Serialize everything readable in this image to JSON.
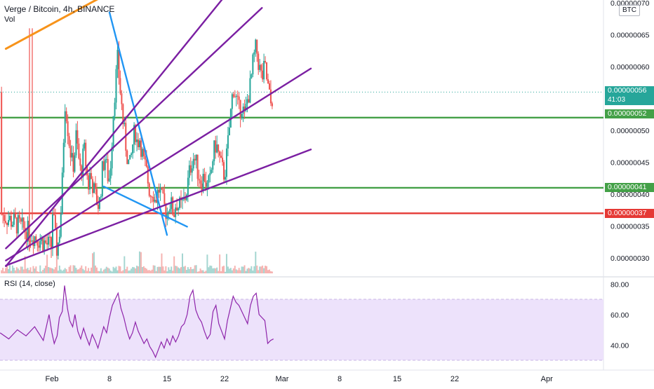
{
  "header": {
    "title": "Verge / Bitcoin, 4h, BINANCE",
    "volume_label": "Vol",
    "currency_badge": "BTC"
  },
  "rsi_panel": {
    "title": "RSI (14, close)"
  },
  "price_tags": {
    "last_price": "0.00000056",
    "countdown": "41:03",
    "green_upper": "0.00000052",
    "green_lower": "0.00000041",
    "red": "0.00000037"
  },
  "colors": {
    "up": "#26a69a",
    "down": "#ef5350",
    "green_level": "#43a047",
    "red_level": "#e53935",
    "orange_trend": "#f7931a",
    "purple_trend": "#7b1fa2",
    "blue_trend": "#2196f3",
    "rsi_line": "#8e24aa",
    "rsi_band": "#ede2fb"
  },
  "chart_data": [
    {
      "type": "candlestick",
      "title": "Verge / Bitcoin, 4h, BINANCE",
      "x_ticks": [
        "Feb",
        "8",
        "15",
        "22",
        "Mar",
        "8",
        "15",
        "22",
        "Apr"
      ],
      "y_ticks": [
        "0.00000030",
        "0.00000035",
        "0.00000040",
        "0.00000045",
        "0.00000050",
        "0.00000060",
        "0.00000065",
        "0.00000070"
      ],
      "ylim": [
        2.8e-07,
        7e-07
      ],
      "close_path": [
        [
          0,
          3.8e-07
        ],
        [
          0.03,
          3.6e-07
        ],
        [
          0.06,
          3.3e-07
        ],
        [
          0.09,
          3.1e-07
        ],
        [
          0.13,
          3.4e-07
        ],
        [
          0.17,
          3.9e-07
        ],
        [
          0.2,
          4.8e-07
        ],
        [
          0.23,
          5.5e-07
        ],
        [
          0.26,
          5.2e-07
        ],
        [
          0.29,
          4.9e-07
        ],
        [
          0.32,
          4.7e-07
        ],
        [
          0.36,
          4.4e-07
        ],
        [
          0.39,
          4.6e-07
        ],
        [
          0.42,
          4.9e-07
        ],
        [
          0.46,
          4.6e-07
        ],
        [
          0.5,
          4.3e-07
        ],
        [
          0.53,
          4.5e-07
        ],
        [
          0.56,
          4.7e-07
        ],
        [
          0.6,
          4.4e-07
        ],
        [
          0.63,
          4.1e-07
        ],
        [
          0.66,
          4.3e-07
        ],
        [
          0.7,
          4.2e-07
        ],
        [
          0.74,
          4e-07
        ],
        [
          0.78,
          3.9e-07
        ],
        [
          0.82,
          3.8e-07
        ],
        [
          0.85,
          4.1e-07
        ],
        [
          0.88,
          4.4e-07
        ],
        [
          0.92,
          4.6e-07
        ],
        [
          0.95,
          4.4e-07
        ],
        [
          0.99,
          4.2e-07
        ],
        [
          1.03,
          4.6e-07
        ],
        [
          1.06,
          5.2e-07
        ],
        [
          1.1,
          5.7e-07
        ],
        [
          1.14,
          6.1e-07
        ],
        [
          1.17,
          5.8e-07
        ],
        [
          1.21,
          5.4e-07
        ],
        [
          1.24,
          5.1e-07
        ],
        [
          1.28,
          4.8e-07
        ],
        [
          1.31,
          4.6e-07
        ],
        [
          1.35,
          4.4e-07
        ],
        [
          1.38,
          4.6e-07
        ],
        [
          1.42,
          4.9e-07
        ],
        [
          1.45,
          5e-07
        ],
        [
          1.48,
          4.8e-07
        ],
        [
          1.52,
          4.9e-07
        ],
        [
          1.56,
          4.7e-07
        ],
        [
          1.59,
          4.5e-07
        ],
        [
          1.63,
          4.4e-07
        ],
        [
          1.67,
          4.2e-07
        ],
        [
          1.71,
          4e-07
        ],
        [
          1.75,
          4.1e-07
        ],
        [
          1.79,
          3.9e-07
        ],
        [
          1.83,
          4e-07
        ],
        [
          1.87,
          4.1e-07
        ],
        [
          1.91,
          3.9e-07
        ],
        [
          1.95,
          3.8e-07
        ],
        [
          2.0,
          3.7e-07
        ],
        [
          2.04,
          3.9e-07
        ],
        [
          2.08,
          3.8e-07
        ],
        [
          2.12,
          3.7e-07
        ],
        [
          2.16,
          3.9e-07
        ],
        [
          2.2,
          3.8e-07
        ],
        [
          2.25,
          3.8e-07
        ],
        [
          2.3,
          3.9e-07
        ],
        [
          2.35,
          4.1e-07
        ],
        [
          2.4,
          4.4e-07
        ],
        [
          2.45,
          4.6e-07
        ],
        [
          2.5,
          4.5e-07
        ],
        [
          2.55,
          4.3e-07
        ],
        [
          2.6,
          4.2e-07
        ],
        [
          2.65,
          4.3e-07
        ],
        [
          2.7,
          4.1e-07
        ],
        [
          2.75,
          4.2e-07
        ],
        [
          2.8,
          4.6e-07
        ],
        [
          2.85,
          4.8e-07
        ],
        [
          2.9,
          4.6e-07
        ],
        [
          2.95,
          4.4e-07
        ],
        [
          3.0,
          4.3e-07
        ],
        [
          3.05,
          4.7e-07
        ],
        [
          3.1,
          5.2e-07
        ],
        [
          3.15,
          5.7e-07
        ],
        [
          3.2,
          5.5e-07
        ],
        [
          3.25,
          5.3e-07
        ],
        [
          3.3,
          5.4e-07
        ],
        [
          3.35,
          5.2e-07
        ],
        [
          3.4,
          5.5e-07
        ],
        [
          3.45,
          5.7e-07
        ],
        [
          3.5,
          6.1e-07
        ],
        [
          3.55,
          6.3e-07
        ],
        [
          3.6,
          6e-07
        ],
        [
          3.65,
          5.8e-07
        ],
        [
          3.7,
          6e-07
        ],
        [
          3.75,
          5.7e-07
        ],
        [
          3.8,
          5.4e-07
        ],
        [
          3.85,
          5.6e-07
        ]
      ],
      "x_unit_note": "x in weeks from Feb 1",
      "horizontal_levels": [
        {
          "price": 5.2e-07,
          "color": "green"
        },
        {
          "price": 4.1e-07,
          "color": "green"
        },
        {
          "price": 3.7e-07,
          "color": "red"
        }
      ],
      "trendlines": [
        {
          "color": "orange",
          "from": [
            -0.8,
            6.28e-07
          ],
          "to": [
            1.6,
            7.45e-07
          ]
        },
        {
          "color": "blue",
          "from": [
            1.0,
            6.85e-07
          ],
          "to": [
            2.0,
            3.36e-07
          ]
        },
        {
          "color": "blue",
          "from": [
            0.9,
            4.12e-07
          ],
          "to": [
            2.35,
            3.49e-07
          ]
        },
        {
          "color": "purple",
          "from": [
            -0.8,
            2.87e-07
          ],
          "to": [
            3.0,
            7.1e-07
          ]
        },
        {
          "color": "purple",
          "from": [
            -0.8,
            3.15e-07
          ],
          "to": [
            3.65,
            6.92e-07
          ]
        },
        {
          "color": "purple",
          "from": [
            -0.8,
            2.96e-07
          ],
          "to": [
            4.5,
            5.97e-07
          ]
        },
        {
          "color": "purple",
          "from": [
            -0.8,
            2.88e-07
          ],
          "to": [
            4.5,
            4.7e-07
          ]
        }
      ]
    },
    {
      "type": "line",
      "title": "RSI (14, close)",
      "y_ticks": [
        "40.00",
        "60.00",
        "80.00"
      ],
      "ylim": [
        25,
        85
      ],
      "band": [
        30,
        70
      ],
      "values": [
        [
          0,
          48
        ],
        [
          0.04,
          41
        ],
        [
          0.09,
          46
        ],
        [
          0.13,
          58
        ],
        [
          0.18,
          62
        ],
        [
          0.22,
          79
        ],
        [
          0.27,
          64
        ],
        [
          0.31,
          56
        ],
        [
          0.36,
          52
        ],
        [
          0.4,
          60
        ],
        [
          0.45,
          49
        ],
        [
          0.5,
          44
        ],
        [
          0.55,
          51
        ],
        [
          0.6,
          45
        ],
        [
          0.65,
          40
        ],
        [
          0.7,
          47
        ],
        [
          0.75,
          43
        ],
        [
          0.8,
          38
        ],
        [
          0.85,
          45
        ],
        [
          0.9,
          52
        ],
        [
          0.95,
          48
        ],
        [
          1.0,
          58
        ],
        [
          1.05,
          66
        ],
        [
          1.1,
          70
        ],
        [
          1.15,
          74
        ],
        [
          1.2,
          64
        ],
        [
          1.25,
          58
        ],
        [
          1.3,
          50
        ],
        [
          1.35,
          44
        ],
        [
          1.4,
          48
        ],
        [
          1.45,
          55
        ],
        [
          1.5,
          49
        ],
        [
          1.55,
          45
        ],
        [
          1.6,
          41
        ],
        [
          1.65,
          44
        ],
        [
          1.7,
          39
        ],
        [
          1.75,
          36
        ],
        [
          1.8,
          32
        ],
        [
          1.85,
          37
        ],
        [
          1.9,
          42
        ],
        [
          1.95,
          38
        ],
        [
          2.0,
          44
        ],
        [
          2.05,
          40
        ],
        [
          2.1,
          46
        ],
        [
          2.15,
          42
        ],
        [
          2.2,
          46
        ],
        [
          2.25,
          52
        ],
        [
          2.3,
          54
        ],
        [
          2.35,
          60
        ],
        [
          2.4,
          72
        ],
        [
          2.45,
          76
        ],
        [
          2.5,
          63
        ],
        [
          2.55,
          58
        ],
        [
          2.6,
          55
        ],
        [
          2.65,
          49
        ],
        [
          2.7,
          44
        ],
        [
          2.75,
          47
        ],
        [
          2.8,
          62
        ],
        [
          2.85,
          66
        ],
        [
          2.9,
          54
        ],
        [
          2.95,
          49
        ],
        [
          3.0,
          44
        ],
        [
          3.05,
          56
        ],
        [
          3.1,
          64
        ],
        [
          3.15,
          72
        ],
        [
          3.2,
          68
        ],
        [
          3.25,
          66
        ],
        [
          3.3,
          62
        ],
        [
          3.35,
          58
        ],
        [
          3.4,
          54
        ],
        [
          3.45,
          66
        ],
        [
          3.5,
          72
        ],
        [
          3.55,
          74
        ],
        [
          3.6,
          60
        ],
        [
          3.65,
          58
        ],
        [
          3.7,
          56
        ],
        [
          3.75,
          41
        ],
        [
          3.8,
          43
        ],
        [
          3.85,
          44
        ]
      ]
    }
  ]
}
